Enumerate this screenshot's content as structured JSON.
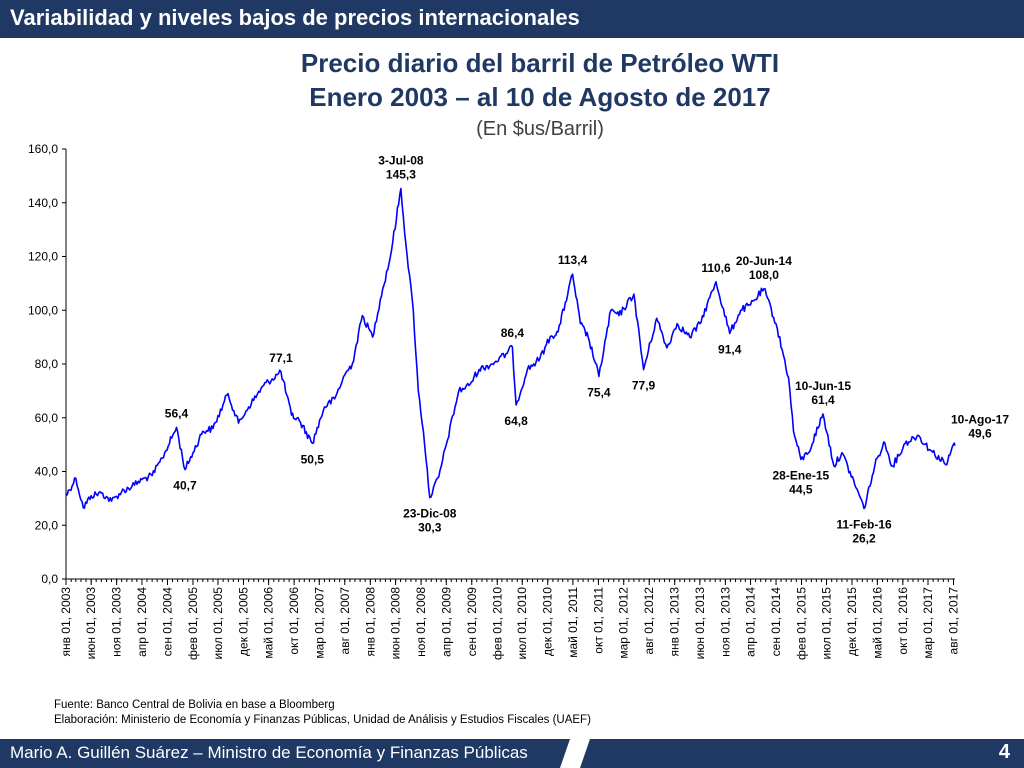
{
  "header": {
    "title": "Variabilidad y niveles bajos de precios internacionales"
  },
  "chart_data": {
    "type": "line",
    "title": "Precio diario del barril de Petróleo WTI",
    "subtitle": "Enero 2003 – al 10 de Agosto de 2017",
    "unit_label": "(En $us/Barril)",
    "ylim": [
      0,
      160
    ],
    "y_ticks": [
      "0,0",
      "20,0",
      "40,0",
      "60,0",
      "80,0",
      "100,0",
      "120,0",
      "140,0",
      "160,0"
    ],
    "x_tick_labels": [
      "янв 01, 2003",
      "июн 01, 2003",
      "ноя 01, 2003",
      "апр 01, 2004",
      "сен 01, 2004",
      "фев 01, 2005",
      "июл 01, 2005",
      "дек 01, 2005",
      "май 01, 2006",
      "окт 01, 2006",
      "мар 01, 2007",
      "авг 01, 2007",
      "янв 01, 2008",
      "июн 01, 2008",
      "ноя 01, 2008",
      "апр 01, 2009",
      "сен 01, 2009",
      "фев 01, 2010",
      "июл 01, 2010",
      "дек 01, 2010",
      "май 01, 2011",
      "окт 01, 2011",
      "мар 01, 2012",
      "авг 01, 2012",
      "янв 01, 2013",
      "июн 01, 2013",
      "ноя 01, 2013",
      "апр 01, 2014",
      "сен 01, 2014",
      "фев 01, 2015",
      "июл 01, 2015",
      "дек 01, 2015",
      "май 01, 2016",
      "окт 01, 2016",
      "мар 01, 2017",
      "авг 01, 2017"
    ],
    "series": [
      {
        "color": "#0000ff",
        "points": [
          [
            "2003-01-01",
            31.0
          ],
          [
            "2003-03-01",
            37.5
          ],
          [
            "2003-04-15",
            26.5
          ],
          [
            "2003-06-01",
            31.0
          ],
          [
            "2003-08-01",
            32.0
          ],
          [
            "2003-10-01",
            29.0
          ],
          [
            "2003-12-01",
            32.5
          ],
          [
            "2004-02-01",
            34.5
          ],
          [
            "2004-04-01",
            37.0
          ],
          [
            "2004-06-01",
            38.5
          ],
          [
            "2004-08-01",
            45.0
          ],
          [
            "2004-10-25",
            56.4
          ],
          [
            "2004-12-15",
            40.7
          ],
          [
            "2005-02-01",
            47.0
          ],
          [
            "2005-04-01",
            55.0
          ],
          [
            "2005-06-01",
            56.0
          ],
          [
            "2005-08-30",
            69.0
          ],
          [
            "2005-11-01",
            58.0
          ],
          [
            "2006-01-01",
            64.0
          ],
          [
            "2006-04-01",
            72.0
          ],
          [
            "2006-07-14",
            77.1
          ],
          [
            "2006-09-15",
            61.0
          ],
          [
            "2006-11-01",
            59.0
          ],
          [
            "2007-01-18",
            50.5
          ],
          [
            "2007-04-01",
            64.0
          ],
          [
            "2007-06-01",
            67.0
          ],
          [
            "2007-08-01",
            76.0
          ],
          [
            "2007-09-15",
            80.0
          ],
          [
            "2007-11-15",
            98.0
          ],
          [
            "2008-01-15",
            90.0
          ],
          [
            "2008-03-01",
            104.0
          ],
          [
            "2008-05-01",
            120.0
          ],
          [
            "2008-07-03",
            145.3
          ],
          [
            "2008-08-01",
            125.0
          ],
          [
            "2008-09-15",
            100.0
          ],
          [
            "2008-10-15",
            70.0
          ],
          [
            "2008-11-15",
            55.0
          ],
          [
            "2008-12-23",
            30.3
          ],
          [
            "2009-02-15",
            38.0
          ],
          [
            "2009-04-01",
            50.0
          ],
          [
            "2009-06-15",
            70.0
          ],
          [
            "2009-08-15",
            72.0
          ],
          [
            "2009-10-15",
            78.0
          ],
          [
            "2010-01-01",
            80.0
          ],
          [
            "2010-04-01",
            84.0
          ],
          [
            "2010-05-03",
            86.4
          ],
          [
            "2010-05-25",
            64.8
          ],
          [
            "2010-08-01",
            78.0
          ],
          [
            "2010-10-15",
            82.0
          ],
          [
            "2010-12-15",
            90.0
          ],
          [
            "2011-02-01",
            92.0
          ],
          [
            "2011-04-29",
            113.4
          ],
          [
            "2011-06-15",
            95.0
          ],
          [
            "2011-08-01",
            90.0
          ],
          [
            "2011-10-04",
            75.4
          ],
          [
            "2011-12-15",
            100.0
          ],
          [
            "2012-02-01",
            98.0
          ],
          [
            "2012-05-01",
            106.0
          ],
          [
            "2012-06-28",
            77.9
          ],
          [
            "2012-09-15",
            97.0
          ],
          [
            "2012-11-15",
            86.0
          ],
          [
            "2013-01-15",
            95.0
          ],
          [
            "2013-04-01",
            90.0
          ],
          [
            "2013-06-01",
            95.0
          ],
          [
            "2013-09-06",
            110.6
          ],
          [
            "2013-11-27",
            91.4
          ],
          [
            "2014-02-01",
            100.0
          ],
          [
            "2014-04-01",
            102.0
          ],
          [
            "2014-06-20",
            108.0
          ],
          [
            "2014-09-01",
            95.0
          ],
          [
            "2014-11-15",
            75.0
          ],
          [
            "2014-12-15",
            55.0
          ],
          [
            "2015-01-28",
            44.5
          ],
          [
            "2015-03-15",
            47.0
          ],
          [
            "2015-06-10",
            61.4
          ],
          [
            "2015-08-15",
            42.0
          ],
          [
            "2015-10-01",
            47.0
          ],
          [
            "2016-01-15",
            31.0
          ],
          [
            "2016-02-11",
            26.2
          ],
          [
            "2016-04-15",
            42.0
          ],
          [
            "2016-06-08",
            51.0
          ],
          [
            "2016-08-01",
            42.0
          ],
          [
            "2016-10-15",
            50.5
          ],
          [
            "2016-12-30",
            53.5
          ],
          [
            "2017-03-15",
            48.0
          ],
          [
            "2017-06-21",
            42.5
          ],
          [
            "2017-07-31",
            50.0
          ],
          [
            "2017-08-10",
            49.6
          ]
        ]
      }
    ],
    "annotations": [
      {
        "date": "2004-12-15",
        "value": 40.7,
        "text": "40,7",
        "pos": "below"
      },
      {
        "date": "2004-10-25",
        "value": 56.4,
        "text": "56,4",
        "pos": "above"
      },
      {
        "date": "2006-07-14",
        "value": 77.1,
        "text": "77,1",
        "pos": "above"
      },
      {
        "date": "2007-01-18",
        "value": 50.5,
        "text": "50,5",
        "pos": "below"
      },
      {
        "date": "2008-07-03",
        "value": 145.3,
        "text": "3-Jul-08\n145,3",
        "pos": "above"
      },
      {
        "date": "2008-12-23",
        "value": 30.3,
        "text": "23-Dic-08\n30,3",
        "pos": "below"
      },
      {
        "date": "2010-05-03",
        "value": 86.4,
        "text": "86,4",
        "pos": "above"
      },
      {
        "date": "2010-05-25",
        "value": 64.8,
        "text": "64,8",
        "pos": "below"
      },
      {
        "date": "2011-04-29",
        "value": 113.4,
        "text": "113,4",
        "pos": "above"
      },
      {
        "date": "2011-10-04",
        "value": 75.4,
        "text": "75,4",
        "pos": "below"
      },
      {
        "date": "2012-06-28",
        "value": 77.9,
        "text": "77,9",
        "pos": "below"
      },
      {
        "date": "2013-09-06",
        "value": 110.6,
        "text": "110,6",
        "pos": "above"
      },
      {
        "date": "2013-11-27",
        "value": 91.4,
        "text": "91,4",
        "pos": "below"
      },
      {
        "date": "2014-06-20",
        "value": 108.0,
        "text": "20-Jun-14\n108,0",
        "pos": "above"
      },
      {
        "date": "2015-06-10",
        "value": 61.4,
        "text": "10-Jun-15\n61,4",
        "pos": "above"
      },
      {
        "date": "2015-01-28",
        "value": 44.5,
        "text": "28-Ene-15\n44,5",
        "pos": "below"
      },
      {
        "date": "2016-02-11",
        "value": 26.2,
        "text": "11-Feb-16\n26,2",
        "pos": "below"
      },
      {
        "date": "2017-08-10",
        "value": 49.6,
        "text": "10-Ago-17\n49,6",
        "pos": "above-right"
      }
    ]
  },
  "source_lines": [
    "Fuente: Banco Central de Bolivia en base a Bloomberg",
    "Elaboración: Ministerio de Economía y Finanzas Públicas, Unidad de Análisis y Estudios Fiscales (UAEF)"
  ],
  "footer": {
    "author": "Mario A. Guillén Suárez – Ministro de Economía y Finanzas Públicas",
    "page_number": "4"
  }
}
